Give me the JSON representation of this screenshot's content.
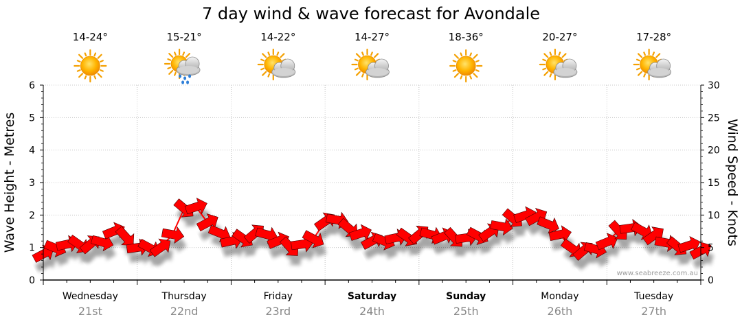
{
  "chart_data": {
    "type": "line",
    "title": "7 day wind & wave forecast for Avondale",
    "ylabel_left": "Wave Height - Metres",
    "ylabel_right": "Wind Speed - Knots",
    "ylim_left": [
      0,
      6
    ],
    "ylim_right": [
      0,
      30
    ],
    "yticks_left": [
      "0",
      "1",
      "2",
      "3",
      "4",
      "5",
      "6"
    ],
    "yticks_right": [
      "0",
      "5",
      "10",
      "15",
      "20",
      "25",
      "30"
    ],
    "grid": true,
    "credit": "www.seabreeze.com.au",
    "days": [
      {
        "name": "Wednesday",
        "date": "21st",
        "temp": "14-24°",
        "icon": "sun-icon",
        "bold": false
      },
      {
        "name": "Thursday",
        "date": "22nd",
        "temp": "15-21°",
        "icon": "rain-cloud-icon",
        "bold": false
      },
      {
        "name": "Friday",
        "date": "23rd",
        "temp": "14-22°",
        "icon": "partly-cloudy-icon",
        "bold": false
      },
      {
        "name": "Saturday",
        "date": "24th",
        "temp": "14-27°",
        "icon": "partly-cloudy-icon",
        "bold": true
      },
      {
        "name": "Sunday",
        "date": "25th",
        "temp": "18-36°",
        "icon": "sun-icon",
        "bold": true
      },
      {
        "name": "Monday",
        "date": "26th",
        "temp": "20-27°",
        "icon": "partly-cloudy-icon",
        "bold": false
      },
      {
        "name": "Tuesday",
        "date": "27th",
        "temp": "17-28°",
        "icon": "partly-cloudy-icon",
        "bold": false
      }
    ],
    "series": [
      {
        "name": "Wind Speed - Knots",
        "unit": "knots",
        "axis": "right",
        "color": "#ff0000",
        "highlight_color": "#ffff00",
        "highlight_above": 12,
        "x_days": [
          0.0,
          0.2,
          0.4,
          0.6,
          0.75,
          0.9,
          1.0,
          1.15,
          1.3,
          1.45,
          1.55,
          1.7,
          1.85,
          2.0,
          2.15,
          2.3,
          2.45,
          2.6,
          2.75,
          2.9,
          3.0,
          3.1,
          3.25,
          3.4,
          3.55,
          3.7,
          3.85,
          4.0,
          4.15,
          4.3,
          4.5,
          4.7,
          4.85,
          5.0,
          5.15,
          5.3,
          5.5,
          5.65,
          5.8,
          5.95,
          6.1,
          6.25,
          6.4,
          6.55,
          6.7,
          6.85,
          7.0
        ],
        "values": [
          4.0,
          5.5,
          5.5,
          5.5,
          7.5,
          6.5,
          5.0,
          5.0,
          5.0,
          9.0,
          13.0,
          9.5,
          7.5,
          6.0,
          6.5,
          7.5,
          6.5,
          5.0,
          5.5,
          6.5,
          9.0,
          9.5,
          8.0,
          7.0,
          5.5,
          6.5,
          6.5,
          7.0,
          7.0,
          6.5,
          6.5,
          7.0,
          8.0,
          9.5,
          10.0,
          9.5,
          7.0,
          4.5,
          4.5,
          5.0,
          7.5,
          8.0,
          7.5,
          6.5,
          5.0,
          5.5,
          4.5
        ]
      }
    ]
  }
}
